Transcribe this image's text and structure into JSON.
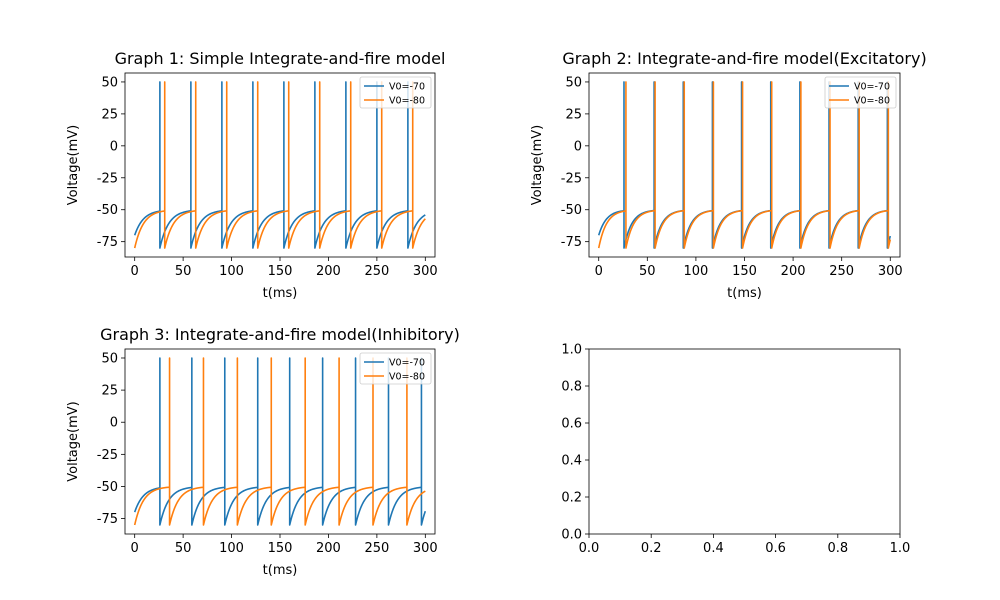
{
  "chart_data": [
    {
      "type": "line",
      "title": "Graph 1: Simple Integrate-and-fire model",
      "xlabel": "t(ms)",
      "ylabel": "Voltage(mV)",
      "xlim": [
        -10,
        310
      ],
      "ylim": [
        -87,
        57
      ],
      "xticks": [
        0,
        50,
        100,
        150,
        200,
        250,
        300
      ],
      "yticks": [
        50,
        25,
        0,
        -25,
        -50,
        -75
      ],
      "legend": "top-right",
      "model": {
        "v_rest": -50,
        "tau": 9,
        "spike_peak": 50,
        "v_reset": -80,
        "t_end": 300
      },
      "series": [
        {
          "name": "V0=-70",
          "color": "#1f77b4",
          "v0": -70,
          "spike_times": [
            26,
            58,
            90,
            122,
            154,
            186,
            218,
            250,
            282
          ]
        },
        {
          "name": "V0=-80",
          "color": "#ff7f0e",
          "v0": -80,
          "spike_times": [
            31,
            63,
            95,
            127,
            159,
            191,
            223,
            255,
            287
          ]
        }
      ]
    },
    {
      "type": "line",
      "title": "Graph 2: Integrate-and-fire model(Excitatory)",
      "xlabel": "t(ms)",
      "ylabel": "Voltage(mV)",
      "xlim": [
        -10,
        310
      ],
      "ylim": [
        -87,
        57
      ],
      "xticks": [
        0,
        50,
        100,
        150,
        200,
        250,
        300
      ],
      "yticks": [
        50,
        25,
        0,
        -25,
        -50,
        -75
      ],
      "legend": "top-right",
      "model": {
        "v_rest": -50,
        "tau": 8,
        "spike_peak": 50,
        "v_reset": -80,
        "t_end": 300
      },
      "series": [
        {
          "name": "V0=-70",
          "color": "#1f77b4",
          "v0": -70,
          "spike_times": [
            26,
            57,
            87,
            117,
            147,
            177,
            207,
            237,
            267,
            297
          ]
        },
        {
          "name": "V0=-80",
          "color": "#ff7f0e",
          "v0": -80,
          "spike_times": [
            28,
            58,
            88,
            118,
            148,
            178,
            208,
            238,
            268,
            298
          ]
        }
      ]
    },
    {
      "type": "line",
      "title": "Graph 3: Integrate-and-fire model(Inhibitory)",
      "xlabel": "t(ms)",
      "ylabel": "Voltage(mV)",
      "xlim": [
        -10,
        310
      ],
      "ylim": [
        -87,
        57
      ],
      "xticks": [
        0,
        50,
        100,
        150,
        200,
        250,
        300
      ],
      "yticks": [
        50,
        25,
        0,
        -25,
        -50,
        -75
      ],
      "legend": "top-right",
      "model": {
        "v_rest": -50,
        "tau": 9,
        "spike_peak": 50,
        "v_reset": -80,
        "t_end": 300
      },
      "series": [
        {
          "name": "V0=-70",
          "color": "#1f77b4",
          "v0": -70,
          "spike_times": [
            26,
            59,
            93,
            127,
            160,
            194,
            228,
            262,
            296
          ]
        },
        {
          "name": "V0=-80",
          "color": "#ff7f0e",
          "v0": -80,
          "spike_times": [
            36,
            71,
            106,
            141,
            176,
            211,
            246,
            281
          ]
        }
      ]
    },
    {
      "type": "line",
      "title": "",
      "xlabel": "",
      "ylabel": "",
      "xlim": [
        0,
        1
      ],
      "ylim": [
        0,
        1
      ],
      "xticks": [
        0.0,
        0.2,
        0.4,
        0.6,
        0.8,
        1.0
      ],
      "yticks": [
        0.0,
        0.2,
        0.4,
        0.6,
        0.8,
        1.0
      ],
      "series": []
    }
  ]
}
